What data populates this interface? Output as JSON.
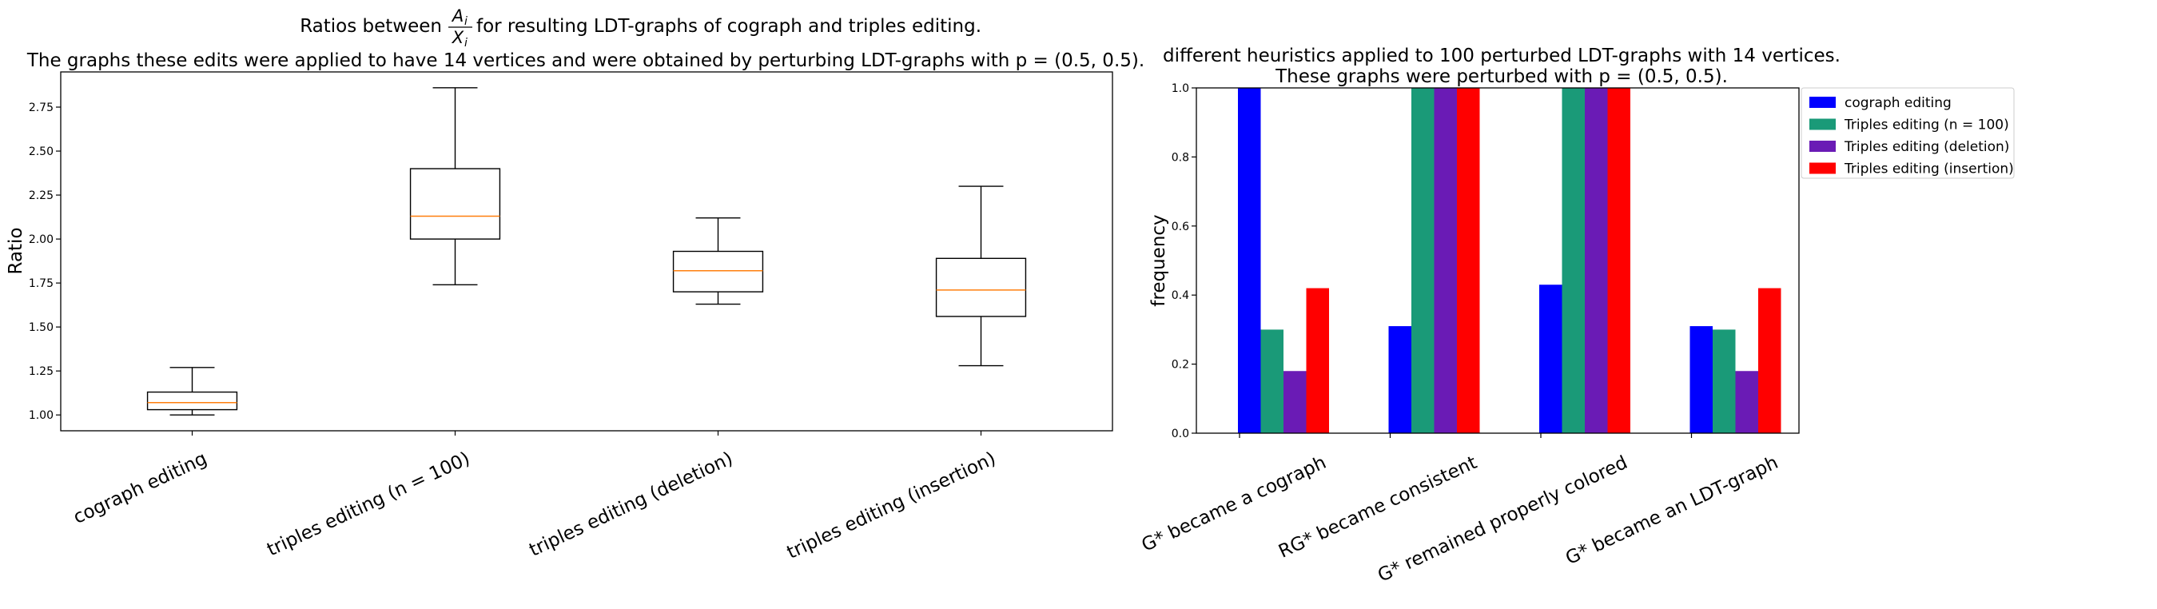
{
  "chart_data": [
    {
      "type": "box",
      "title_line1_before": "Ratios between",
      "title_fraction_num": "A",
      "title_fraction_num_sub": "i",
      "title_fraction_den": "X",
      "title_fraction_den_sub": "i",
      "title_line1_after": "for resulting LDT-graphs of cograph and triples editing.",
      "title_line2": "The graphs these edits were applied to have 14 vertices and were obtained by perturbing LDT-graphs with p = (0.5, 0.5).",
      "ylabel": "Ratio",
      "ylim": [
        0.91,
        2.95
      ],
      "yticks": [
        "1.00",
        "1.25",
        "1.50",
        "1.75",
        "2.00",
        "2.25",
        "2.50",
        "2.75"
      ],
      "categories": [
        "cograph editing",
        "triples editing (n = 100)",
        "triples editing (deletion)",
        "triples editing (insertion)"
      ],
      "boxes": [
        {
          "whisker_low": 1.0,
          "q1": 1.03,
          "median": 1.07,
          "q3": 1.13,
          "whisker_high": 1.27
        },
        {
          "whisker_low": 1.74,
          "q1": 2.0,
          "median": 2.13,
          "q3": 2.4,
          "whisker_high": 2.86
        },
        {
          "whisker_low": 1.63,
          "q1": 1.7,
          "median": 1.82,
          "q3": 1.93,
          "whisker_high": 2.12
        },
        {
          "whisker_low": 1.28,
          "q1": 1.56,
          "median": 1.71,
          "q3": 1.89,
          "whisker_high": 2.3
        }
      ],
      "colors": {
        "box": "#000000",
        "median": "#ff7f0e"
      }
    },
    {
      "type": "bar",
      "title_line1": "different heuristics applied to 100 perturbed LDT-graphs with 14 vertices.",
      "title_line2": "These graphs were perturbed with p = (0.5, 0.5).",
      "ylabel": "frequency",
      "ylim": [
        0.0,
        1.0
      ],
      "yticks": [
        "0.0",
        "0.2",
        "0.4",
        "0.6",
        "0.8",
        "1.0"
      ],
      "categories": [
        "G* became a cograph",
        "RG* became consistent",
        "G* remained properly colored",
        "G* became an LDT-graph"
      ],
      "series": [
        {
          "name": "cograph editing",
          "color": "#0000ff",
          "values": [
            1.0,
            0.31,
            0.43,
            0.31
          ]
        },
        {
          "name": "Triples editing (n = 100)",
          "color": "#1a9a78",
          "values": [
            0.3,
            1.0,
            1.0,
            0.3
          ]
        },
        {
          "name": "Triples editing (deletion)",
          "color": "#6a1bb5",
          "values": [
            0.18,
            1.0,
            1.0,
            0.18
          ]
        },
        {
          "name": "Triples editing (insertion)",
          "color": "#ff0000",
          "values": [
            0.42,
            1.0,
            1.0,
            0.42
          ]
        }
      ],
      "legend_position": "top-right"
    }
  ]
}
